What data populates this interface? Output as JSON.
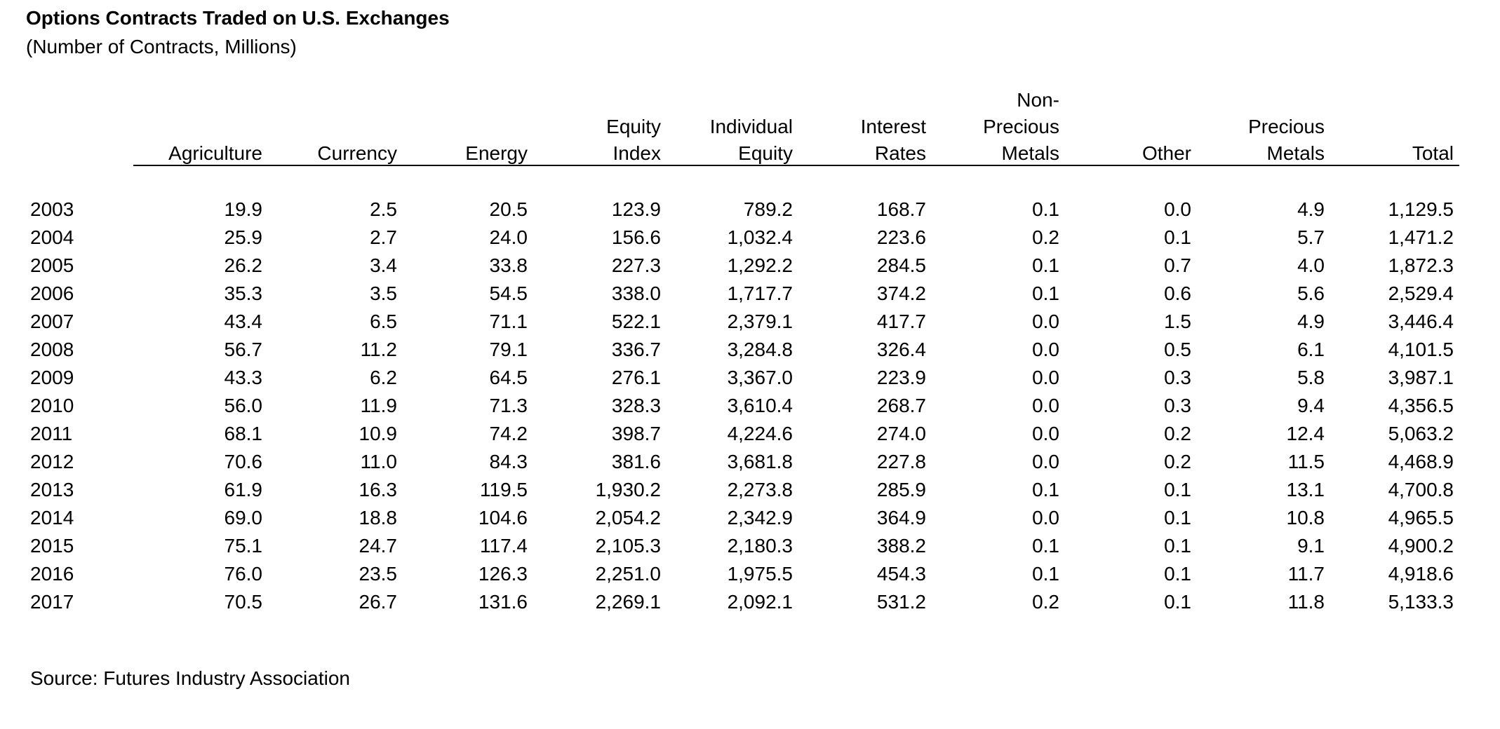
{
  "title": "Options Contracts Traded on U.S. Exchanges",
  "subtitle": "(Number of Contracts, Millions)",
  "source": "Source: Futures Industry Association",
  "columns": [
    {
      "key": "agriculture",
      "lines": [
        "",
        "",
        "Agriculture"
      ]
    },
    {
      "key": "currency",
      "lines": [
        "",
        "",
        "Currency"
      ]
    },
    {
      "key": "energy",
      "lines": [
        "",
        "",
        "Energy"
      ]
    },
    {
      "key": "equity-index",
      "lines": [
        "",
        "Equity",
        "Index"
      ]
    },
    {
      "key": "individual-equity",
      "lines": [
        "",
        "Individual",
        "Equity"
      ]
    },
    {
      "key": "interest-rates",
      "lines": [
        "",
        "Interest",
        "Rates"
      ]
    },
    {
      "key": "non-precious-metals",
      "lines": [
        "Non-",
        "Precious",
        "Metals"
      ]
    },
    {
      "key": "other",
      "lines": [
        "",
        "",
        "Other"
      ]
    },
    {
      "key": "precious-metals",
      "lines": [
        "",
        "Precious",
        "Metals"
      ]
    },
    {
      "key": "total",
      "lines": [
        "",
        "",
        "Total"
      ]
    }
  ],
  "rows": [
    {
      "year": "2003",
      "values": [
        "19.9",
        "2.5",
        "20.5",
        "123.9",
        "789.2",
        "168.7",
        "0.1",
        "0.0",
        "4.9",
        "1,129.5"
      ]
    },
    {
      "year": "2004",
      "values": [
        "25.9",
        "2.7",
        "24.0",
        "156.6",
        "1,032.4",
        "223.6",
        "0.2",
        "0.1",
        "5.7",
        "1,471.2"
      ]
    },
    {
      "year": "2005",
      "values": [
        "26.2",
        "3.4",
        "33.8",
        "227.3",
        "1,292.2",
        "284.5",
        "0.1",
        "0.7",
        "4.0",
        "1,872.3"
      ]
    },
    {
      "year": "2006",
      "values": [
        "35.3",
        "3.5",
        "54.5",
        "338.0",
        "1,717.7",
        "374.2",
        "0.1",
        "0.6",
        "5.6",
        "2,529.4"
      ]
    },
    {
      "year": "2007",
      "values": [
        "43.4",
        "6.5",
        "71.1",
        "522.1",
        "2,379.1",
        "417.7",
        "0.0",
        "1.5",
        "4.9",
        "3,446.4"
      ]
    },
    {
      "year": "2008",
      "values": [
        "56.7",
        "11.2",
        "79.1",
        "336.7",
        "3,284.8",
        "326.4",
        "0.0",
        "0.5",
        "6.1",
        "4,101.5"
      ]
    },
    {
      "year": "2009",
      "values": [
        "43.3",
        "6.2",
        "64.5",
        "276.1",
        "3,367.0",
        "223.9",
        "0.0",
        "0.3",
        "5.8",
        "3,987.1"
      ]
    },
    {
      "year": "2010",
      "values": [
        "56.0",
        "11.9",
        "71.3",
        "328.3",
        "3,610.4",
        "268.7",
        "0.0",
        "0.3",
        "9.4",
        "4,356.5"
      ]
    },
    {
      "year": "2011",
      "values": [
        "68.1",
        "10.9",
        "74.2",
        "398.7",
        "4,224.6",
        "274.0",
        "0.0",
        "0.2",
        "12.4",
        "5,063.2"
      ]
    },
    {
      "year": "2012",
      "values": [
        "70.6",
        "11.0",
        "84.3",
        "381.6",
        "3,681.8",
        "227.8",
        "0.0",
        "0.2",
        "11.5",
        "4,468.9"
      ]
    },
    {
      "year": "2013",
      "values": [
        "61.9",
        "16.3",
        "119.5",
        "1,930.2",
        "2,273.8",
        "285.9",
        "0.1",
        "0.1",
        "13.1",
        "4,700.8"
      ]
    },
    {
      "year": "2014",
      "values": [
        "69.0",
        "18.8",
        "104.6",
        "2,054.2",
        "2,342.9",
        "364.9",
        "0.0",
        "0.1",
        "10.8",
        "4,965.5"
      ]
    },
    {
      "year": "2015",
      "values": [
        "75.1",
        "24.7",
        "117.4",
        "2,105.3",
        "2,180.3",
        "388.2",
        "0.1",
        "0.1",
        "9.1",
        "4,900.2"
      ]
    },
    {
      "year": "2016",
      "values": [
        "76.0",
        "23.5",
        "126.3",
        "2,251.0",
        "1,975.5",
        "454.3",
        "0.1",
        "0.1",
        "11.7",
        "4,918.6"
      ]
    },
    {
      "year": "2017",
      "values": [
        "70.5",
        "26.7",
        "131.6",
        "2,269.1",
        "2,092.1",
        "531.2",
        "0.2",
        "0.1",
        "11.8",
        "5,133.3"
      ]
    }
  ]
}
